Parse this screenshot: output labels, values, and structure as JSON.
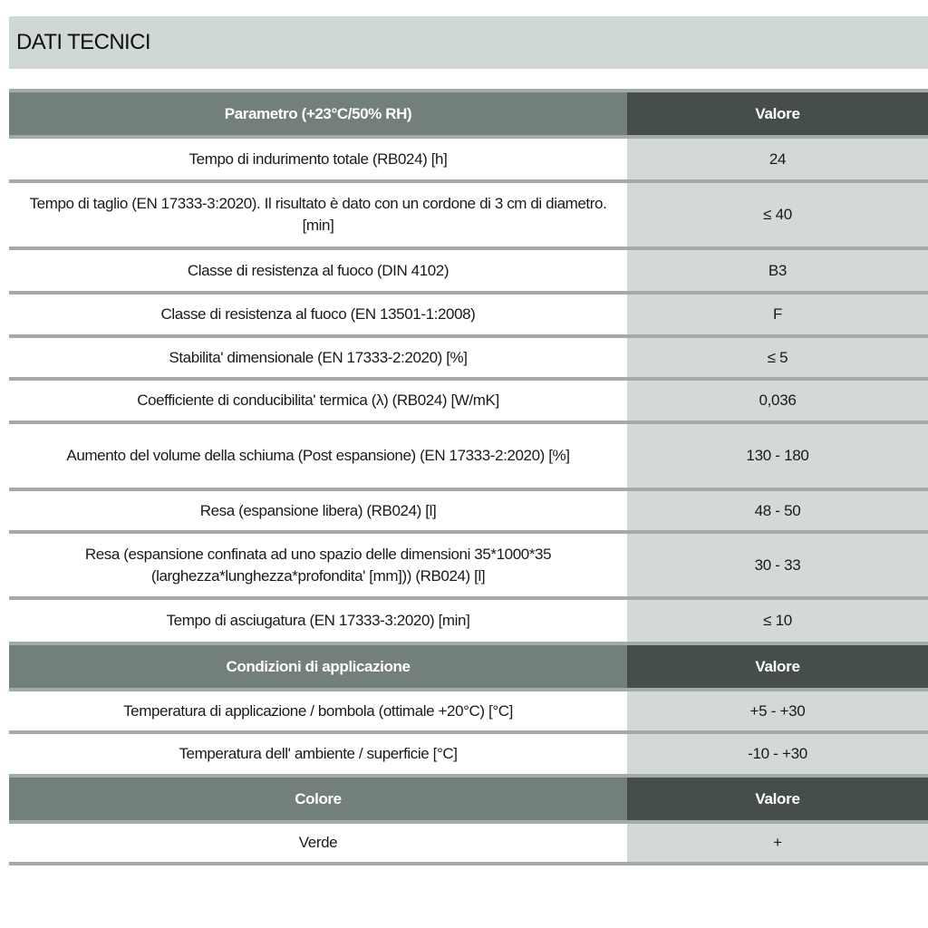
{
  "title": "DATI TECNICI",
  "colors": {
    "title_band": "#d0d8d5",
    "header_left": "#737f7d",
    "header_right": "#464d4d",
    "value_column": "#d2d9d6",
    "separator": "#a4aaa8"
  },
  "sections": [
    {
      "header": {
        "param": "Parametro (+23°C/50% RH)",
        "value": "Valore"
      },
      "rows": [
        {
          "param": "Tempo di indurimento totale (RB024) [h]",
          "value": "24"
        },
        {
          "param": "Tempo di taglio (EN 17333-3:2020). Il risultato è dato con un cordone di 3 cm di diametro. [min]",
          "value": "≤ 40"
        },
        {
          "param": "Classe di resistenza al fuoco (DIN 4102)",
          "value": "B3"
        },
        {
          "param": "Classe di resistenza al fuoco (EN 13501-1:2008)",
          "value": "F"
        },
        {
          "param": "Stabilita' dimensionale (EN 17333-2:2020) [%]",
          "value": "≤ 5"
        },
        {
          "param": "Coefficiente di conducibilita' termica (λ) (RB024) [W/mK]",
          "value": "0,036"
        },
        {
          "param": "Aumento del volume della schiuma (Post espansione) (EN 17333-2:2020) [%]",
          "value": "130 - 180"
        },
        {
          "param": "Resa (espansione libera) (RB024) [l]",
          "value": "48 - 50"
        },
        {
          "param": "Resa (espansione confinata ad uno spazio delle dimensioni 35*1000*35 (larghezza*lunghezza*profondita' [mm])) (RB024) [l]",
          "value": "30 - 33"
        },
        {
          "param": "Tempo di asciugatura (EN 17333-3:2020) [min]",
          "value": "≤ 10"
        }
      ]
    },
    {
      "header": {
        "param": "Condizioni di applicazione",
        "value": "Valore"
      },
      "rows": [
        {
          "param": "Temperatura di applicazione / bombola (ottimale +20°C) [°C]",
          "value": "+5 - +30"
        },
        {
          "param": "Temperatura dell' ambiente / superficie [°C]",
          "value": "-10 - +30"
        }
      ]
    },
    {
      "header": {
        "param": "Colore",
        "value": "Valore"
      },
      "rows": [
        {
          "param": "Verde",
          "value": "+"
        }
      ]
    }
  ]
}
